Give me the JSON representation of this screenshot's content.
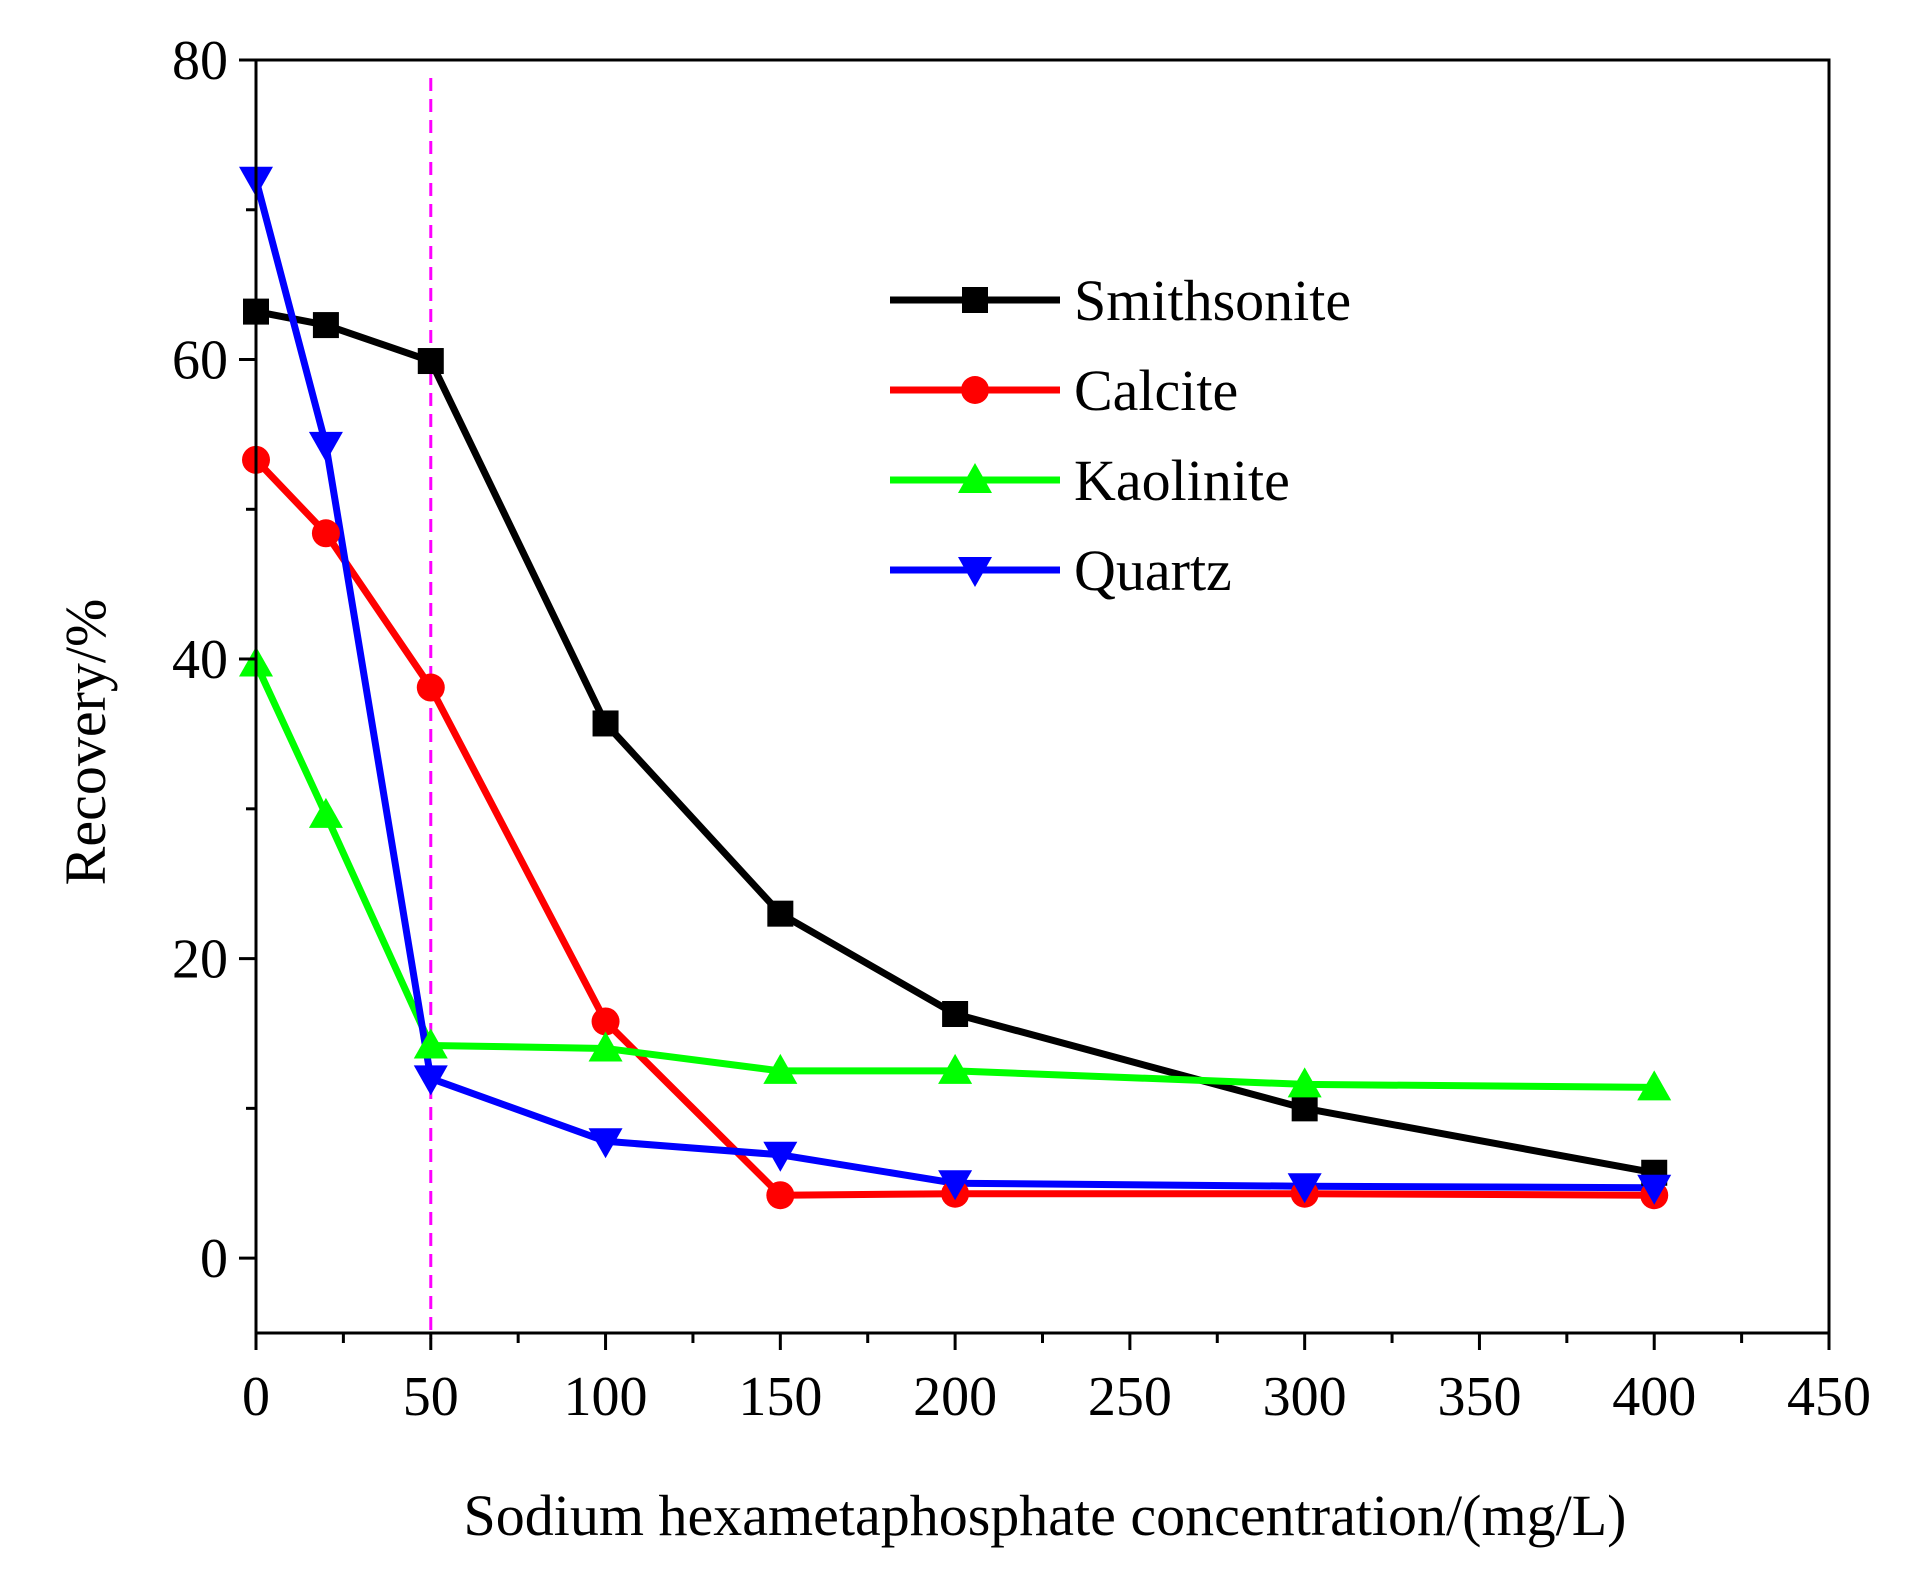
{
  "chart_data": {
    "type": "line",
    "title": "",
    "xlabel": "Sodium hexametaphosphate concentration/(mg/L)",
    "ylabel": "Recovery/%",
    "xlim": [
      0,
      450
    ],
    "ylim": [
      -5,
      80
    ],
    "xticks": [
      0,
      50,
      100,
      150,
      200,
      250,
      300,
      350,
      400,
      450
    ],
    "yticks": [
      0,
      20,
      40,
      60,
      80
    ],
    "x": [
      0,
      20,
      50,
      100,
      150,
      200,
      300,
      400
    ],
    "reference_line": {
      "x": 50,
      "style": "dashed",
      "color": "#ff00ff"
    },
    "legend_position": "top-right",
    "grid": false,
    "series": [
      {
        "name": "Smithsonite",
        "color": "#000000",
        "marker": "square",
        "values": [
          63.2,
          62.3,
          59.9,
          35.7,
          23.0,
          16.3,
          10.0,
          5.7
        ]
      },
      {
        "name": "Calcite",
        "color": "#ff0000",
        "marker": "circle",
        "values": [
          53.3,
          48.4,
          38.1,
          15.8,
          4.2,
          4.3,
          4.3,
          4.2
        ]
      },
      {
        "name": "Kaolinite",
        "color": "#00ff00",
        "marker": "triangle-up",
        "values": [
          39.7,
          29.6,
          14.2,
          14.0,
          12.5,
          12.5,
          11.6,
          11.4
        ]
      },
      {
        "name": "Quartz",
        "color": "#0000ff",
        "marker": "triangle-down",
        "values": [
          72.0,
          54.3,
          12.0,
          7.8,
          6.9,
          5.0,
          4.8,
          4.7
        ]
      }
    ]
  }
}
